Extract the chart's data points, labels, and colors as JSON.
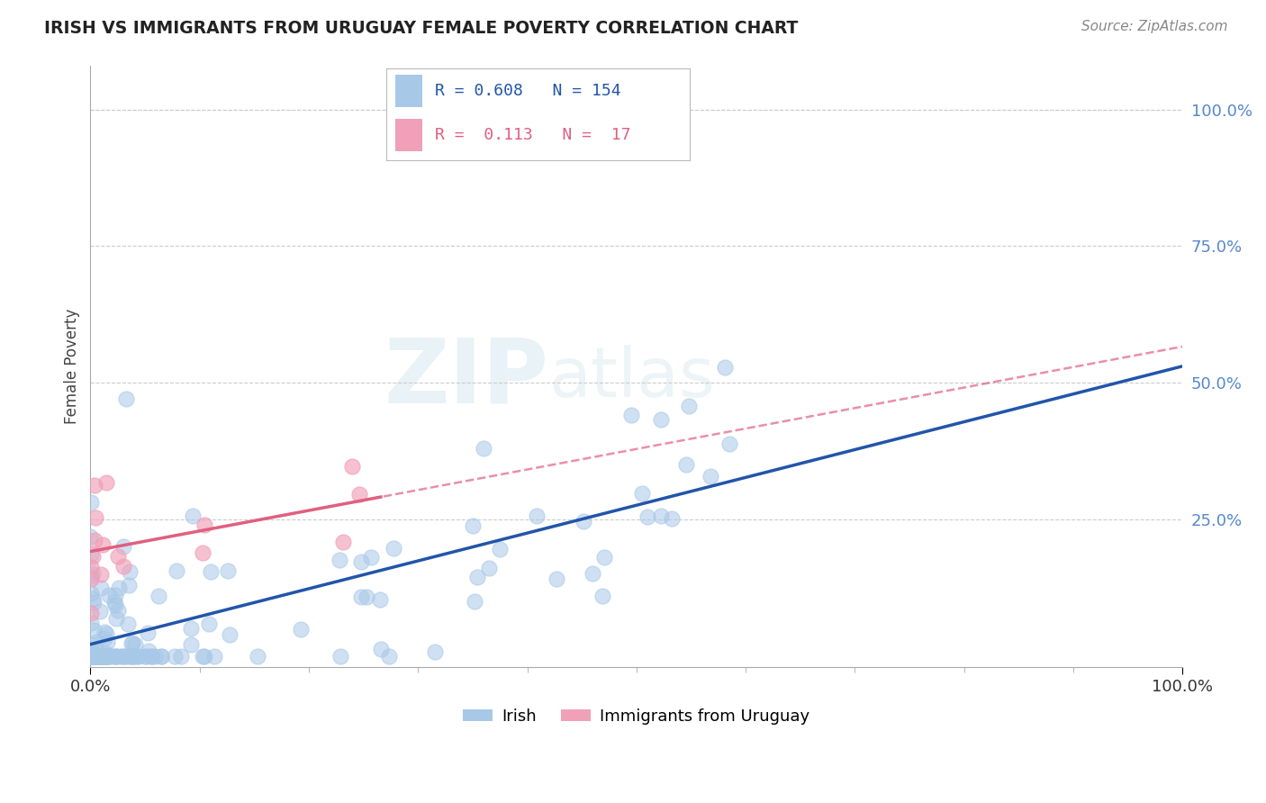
{
  "title": "IRISH VS IMMIGRANTS FROM URUGUAY FEMALE POVERTY CORRELATION CHART",
  "source": "Source: ZipAtlas.com",
  "ylabel": "Female Poverty",
  "irish_R": 0.608,
  "irish_N": 154,
  "uruguay_R": 0.113,
  "uruguay_N": 17,
  "irish_color": "#a8c8e8",
  "irish_line_color": "#2255aa",
  "uruguay_color": "#f0a0b8",
  "uruguay_line_color": "#e06080",
  "uruguay_line_solid_color": "#e06080",
  "watermark_zip": "ZIP",
  "watermark_atlas": "atlas",
  "background_color": "#ffffff",
  "legend_label_irish": "Irish",
  "legend_label_uruguay": "Immigrants from Uruguay",
  "ytick_color": "#5588cc",
  "xtick_color": "#333333"
}
